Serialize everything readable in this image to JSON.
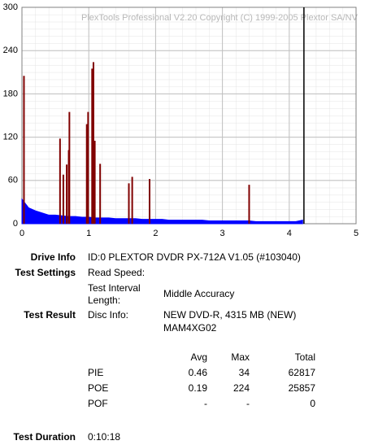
{
  "chart_data": {
    "type": "line",
    "watermark": "PlexTools Professional V2.20 Copyright (C) 1999-2005 Plextor SA/NV",
    "xlim": [
      0,
      5
    ],
    "xticks": [
      0,
      1,
      2,
      3,
      4,
      5
    ],
    "ylim": [
      0,
      300
    ],
    "yticks": [
      0,
      60,
      120,
      180,
      240,
      300
    ],
    "grid": true,
    "end_line_x": 4.22,
    "series": [
      {
        "name": "PIE",
        "color": "#0000ff",
        "style": "area",
        "x": [
          0,
          0.1,
          0.2,
          0.3,
          0.4,
          0.5,
          0.6,
          0.7,
          0.8,
          0.9,
          1.0,
          1.1,
          1.2,
          1.3,
          1.4,
          1.5,
          1.6,
          1.7,
          1.8,
          1.9,
          2.0,
          2.1,
          2.2,
          2.3,
          2.4,
          2.5,
          2.6,
          2.7,
          2.8,
          2.9,
          3.0,
          3.1,
          3.2,
          3.3,
          3.4,
          3.5,
          3.6,
          3.7,
          3.8,
          3.9,
          4.0,
          4.1,
          4.2
        ],
        "values": [
          34,
          22,
          18,
          15,
          12,
          12,
          11,
          10,
          10,
          9,
          9,
          8,
          8,
          8,
          7,
          7,
          7,
          7,
          6,
          6,
          6,
          6,
          5,
          5,
          5,
          5,
          5,
          5,
          4,
          4,
          4,
          4,
          4,
          4,
          4,
          3,
          3,
          3,
          3,
          3,
          3,
          3,
          5
        ]
      },
      {
        "name": "POE",
        "color": "#800000",
        "style": "spikes",
        "x": [
          0.03,
          0.57,
          0.62,
          0.67,
          0.7,
          0.71,
          0.97,
          0.99,
          1.05,
          1.07,
          1.09,
          1.17,
          1.6,
          1.65,
          1.91,
          3.4
        ],
        "values": [
          205,
          118,
          68,
          82,
          102,
          155,
          138,
          155,
          215,
          224,
          115,
          83,
          56,
          65,
          62,
          54
        ]
      }
    ]
  },
  "info": {
    "drive_label": "Drive Info",
    "drive_value": "ID:0 PLEXTOR DVDR PX-712A V1.05 (#103040)",
    "settings_label": "Test Settings",
    "read_speed_label": "Read Speed:",
    "interval_label": "Test Interval Length:",
    "interval_value": "Middle Accuracy",
    "result_label": "Test Result",
    "disc_label": "Disc Info:",
    "disc_lines": [
      "NEW DVD-R, 4315 MB (NEW)",
      "MAM4XG02"
    ],
    "duration_label": "Test Duration",
    "duration_value": "0:10:18"
  },
  "table": {
    "header": [
      "Avg",
      "Max",
      "Total"
    ],
    "rows": [
      [
        "PIE",
        0.46,
        34,
        62817
      ],
      [
        "POE",
        0.19,
        224,
        25857
      ],
      [
        "POF",
        "-",
        "-",
        0
      ]
    ]
  }
}
